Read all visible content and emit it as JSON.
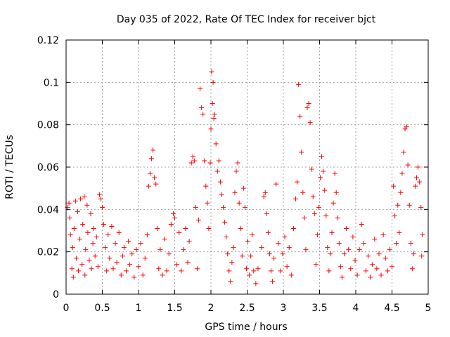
{
  "chart_data": {
    "type": "scatter",
    "title": "Day 035 of 2022, Rate Of TEC Index for receiver bjct",
    "xlabel": "GPS time / hours",
    "ylabel": "ROTI / TECUs",
    "xlim": [
      0,
      5
    ],
    "ylim": [
      0,
      0.12
    ],
    "x_ticks": [
      "0",
      "0.5",
      "1",
      "1.5",
      "2",
      "2.5",
      "3",
      "3.5",
      "4",
      "4.5",
      "5"
    ],
    "y_ticks": [
      "0",
      "0.02",
      "0.04",
      "0.06",
      "0.08",
      "0.1",
      "0.12"
    ],
    "grid": true,
    "marker": "+",
    "color": "#ff0000",
    "series": [
      {
        "name": "ROTI",
        "points": [
          [
            0.02,
            0.041
          ],
          [
            0.04,
            0.043
          ],
          [
            0.05,
            0.036
          ],
          [
            0.06,
            0.028
          ],
          [
            0.08,
            0.012
          ],
          [
            0.09,
            0.022
          ],
          [
            0.1,
            0.008
          ],
          [
            0.11,
            0.031
          ],
          [
            0.13,
            0.044
          ],
          [
            0.14,
            0.017
          ],
          [
            0.16,
            0.039
          ],
          [
            0.17,
            0.011
          ],
          [
            0.19,
            0.026
          ],
          [
            0.2,
            0.045
          ],
          [
            0.22,
            0.014
          ],
          [
            0.23,
            0.033
          ],
          [
            0.25,
            0.046
          ],
          [
            0.26,
            0.009
          ],
          [
            0.27,
            0.021
          ],
          [
            0.29,
            0.042
          ],
          [
            0.3,
            0.029
          ],
          [
            0.32,
            0.016
          ],
          [
            0.34,
            0.038
          ],
          [
            0.35,
            0.012
          ],
          [
            0.37,
            0.024
          ],
          [
            0.38,
            0.031
          ],
          [
            0.4,
            0.018
          ],
          [
            0.42,
            0.027
          ],
          [
            0.44,
            0.013
          ],
          [
            0.46,
            0.047
          ],
          [
            0.48,
            0.045
          ],
          [
            0.5,
            0.041
          ],
          [
            0.52,
            0.033
          ],
          [
            0.54,
            0.022
          ],
          [
            0.56,
            0.011
          ],
          [
            0.58,
            0.028
          ],
          [
            0.6,
            0.017
          ],
          [
            0.63,
            0.032
          ],
          [
            0.65,
            0.012
          ],
          [
            0.68,
            0.024
          ],
          [
            0.7,
            0.015
          ],
          [
            0.73,
            0.029
          ],
          [
            0.76,
            0.009
          ],
          [
            0.78,
            0.018
          ],
          [
            0.8,
            0.022
          ],
          [
            0.83,
            0.011
          ],
          [
            0.86,
            0.025
          ],
          [
            0.88,
            0.014
          ],
          [
            0.91,
            0.019
          ],
          [
            0.94,
            0.008
          ],
          [
            0.97,
            0.021
          ],
          [
            1.0,
            0.013
          ],
          [
            1.03,
            0.024
          ],
          [
            1.06,
            0.009
          ],
          [
            1.09,
            0.017
          ],
          [
            1.12,
            0.028
          ],
          [
            1.14,
            0.051
          ],
          [
            1.16,
            0.057
          ],
          [
            1.18,
            0.064
          ],
          [
            1.2,
            0.068
          ],
          [
            1.22,
            0.055
          ],
          [
            1.24,
            0.052
          ],
          [
            1.26,
            0.031
          ],
          [
            1.28,
            0.012
          ],
          [
            1.3,
            0.021
          ],
          [
            1.33,
            0.009
          ],
          [
            1.36,
            0.026
          ],
          [
            1.39,
            0.011
          ],
          [
            1.42,
            0.019
          ],
          [
            1.45,
            0.033
          ],
          [
            1.48,
            0.038
          ],
          [
            1.5,
            0.036
          ],
          [
            1.53,
            0.014
          ],
          [
            1.56,
            0.029
          ],
          [
            1.59,
            0.011
          ],
          [
            1.62,
            0.021
          ],
          [
            1.65,
            0.031
          ],
          [
            1.68,
            0.015
          ],
          [
            1.7,
            0.025
          ],
          [
            1.73,
            0.062
          ],
          [
            1.75,
            0.065
          ],
          [
            1.77,
            0.063
          ],
          [
            1.79,
            0.041
          ],
          [
            1.81,
            0.012
          ],
          [
            1.83,
            0.035
          ],
          [
            1.85,
            0.097
          ],
          [
            1.87,
            0.088
          ],
          [
            1.89,
            0.085
          ],
          [
            1.91,
            0.063
          ],
          [
            1.93,
            0.051
          ],
          [
            1.95,
            0.043
          ],
          [
            1.97,
            0.031
          ],
          [
            1.99,
            0.062
          ],
          [
            2.0,
            0.078
          ],
          [
            2.01,
            0.105
          ],
          [
            2.02,
            0.09
          ],
          [
            2.03,
            0.1
          ],
          [
            2.04,
            0.083
          ],
          [
            2.05,
            0.085
          ],
          [
            2.07,
            0.071
          ],
          [
            2.09,
            0.058
          ],
          [
            2.11,
            0.063
          ],
          [
            2.13,
            0.053
          ],
          [
            2.15,
            0.047
          ],
          [
            2.17,
            0.041
          ],
          [
            2.19,
            0.034
          ],
          [
            2.21,
            0.027
          ],
          [
            2.23,
            0.019
          ],
          [
            2.25,
            0.011
          ],
          [
            2.27,
            0.006
          ],
          [
            2.29,
            0.015
          ],
          [
            2.31,
            0.022
          ],
          [
            2.33,
            0.048
          ],
          [
            2.35,
            0.058
          ],
          [
            2.37,
            0.062
          ],
          [
            2.39,
            0.043
          ],
          [
            2.41,
            0.031
          ],
          [
            2.43,
            0.018
          ],
          [
            2.45,
            0.05
          ],
          [
            2.47,
            0.041
          ],
          [
            2.49,
            0.012
          ],
          [
            2.51,
            0.025
          ],
          [
            2.53,
            0.009
          ],
          [
            2.55,
            0.018
          ],
          [
            2.57,
            0.028
          ],
          [
            2.59,
            0.011
          ],
          [
            2.62,
            0.005
          ],
          [
            2.65,
            0.012
          ],
          [
            2.7,
            0.022
          ],
          [
            2.73,
            0.046
          ],
          [
            2.75,
            0.048
          ],
          [
            2.77,
            0.038
          ],
          [
            2.79,
            0.029
          ],
          [
            2.81,
            0.019
          ],
          [
            2.83,
            0.011
          ],
          [
            2.85,
            0.006
          ],
          [
            2.87,
            0.017
          ],
          [
            2.9,
            0.052
          ],
          [
            2.93,
            0.024
          ],
          [
            2.96,
            0.011
          ],
          [
            2.99,
            0.019
          ],
          [
            3.02,
            0.027
          ],
          [
            3.05,
            0.013
          ],
          [
            3.08,
            0.022
          ],
          [
            3.11,
            0.009
          ],
          [
            3.14,
            0.031
          ],
          [
            3.17,
            0.045
          ],
          [
            3.19,
            0.053
          ],
          [
            3.21,
            0.099
          ],
          [
            3.23,
            0.084
          ],
          [
            3.25,
            0.067
          ],
          [
            3.27,
            0.048
          ],
          [
            3.29,
            0.036
          ],
          [
            3.31,
            0.021
          ],
          [
            3.33,
            0.088
          ],
          [
            3.35,
            0.09
          ],
          [
            3.37,
            0.081
          ],
          [
            3.39,
            0.059
          ],
          [
            3.41,
            0.046
          ],
          [
            3.43,
            0.038
          ],
          [
            3.45,
            0.014
          ],
          [
            3.47,
            0.028
          ],
          [
            3.49,
            0.041
          ],
          [
            3.51,
            0.055
          ],
          [
            3.53,
            0.065
          ],
          [
            3.55,
            0.058
          ],
          [
            3.57,
            0.049
          ],
          [
            3.59,
            0.037
          ],
          [
            3.61,
            0.022
          ],
          [
            3.63,
            0.011
          ],
          [
            3.65,
            0.019
          ],
          [
            3.67,
            0.029
          ],
          [
            3.69,
            0.043
          ],
          [
            3.71,
            0.057
          ],
          [
            3.73,
            0.048
          ],
          [
            3.75,
            0.036
          ],
          [
            3.77,
            0.024
          ],
          [
            3.79,
            0.013
          ],
          [
            3.81,
            0.008
          ],
          [
            3.84,
            0.019
          ],
          [
            3.87,
            0.031
          ],
          [
            3.9,
            0.021
          ],
          [
            3.93,
            0.012
          ],
          [
            3.96,
            0.027
          ],
          [
            3.99,
            0.016
          ],
          [
            4.02,
            0.009
          ],
          [
            4.05,
            0.021
          ],
          [
            4.08,
            0.033
          ],
          [
            4.11,
            0.024
          ],
          [
            4.14,
            0.011
          ],
          [
            4.17,
            0.018
          ],
          [
            4.2,
            0.008
          ],
          [
            4.23,
            0.014
          ],
          [
            4.26,
            0.026
          ],
          [
            4.29,
            0.012
          ],
          [
            4.32,
            0.019
          ],
          [
            4.35,
            0.009
          ],
          [
            4.38,
            0.028
          ],
          [
            4.41,
            0.017
          ],
          [
            4.44,
            0.011
          ],
          [
            4.47,
            0.021
          ],
          [
            4.5,
            0.013
          ],
          [
            4.52,
            0.051
          ],
          [
            4.54,
            0.037
          ],
          [
            4.56,
            0.024
          ],
          [
            4.58,
            0.042
          ],
          [
            4.6,
            0.029
          ],
          [
            4.62,
            0.048
          ],
          [
            4.64,
            0.057
          ],
          [
            4.66,
            0.067
          ],
          [
            4.68,
            0.078
          ],
          [
            4.7,
            0.079
          ],
          [
            4.72,
            0.061
          ],
          [
            4.74,
            0.042
          ],
          [
            4.76,
            0.024
          ],
          [
            4.78,
            0.012
          ],
          [
            4.8,
            0.019
          ],
          [
            4.82,
            0.051
          ],
          [
            4.84,
            0.055
          ],
          [
            4.86,
            0.06
          ],
          [
            4.88,
            0.053
          ],
          [
            4.9,
            0.041
          ],
          [
            4.91,
            0.018
          ],
          [
            4.92,
            0.028
          ]
        ]
      }
    ]
  }
}
